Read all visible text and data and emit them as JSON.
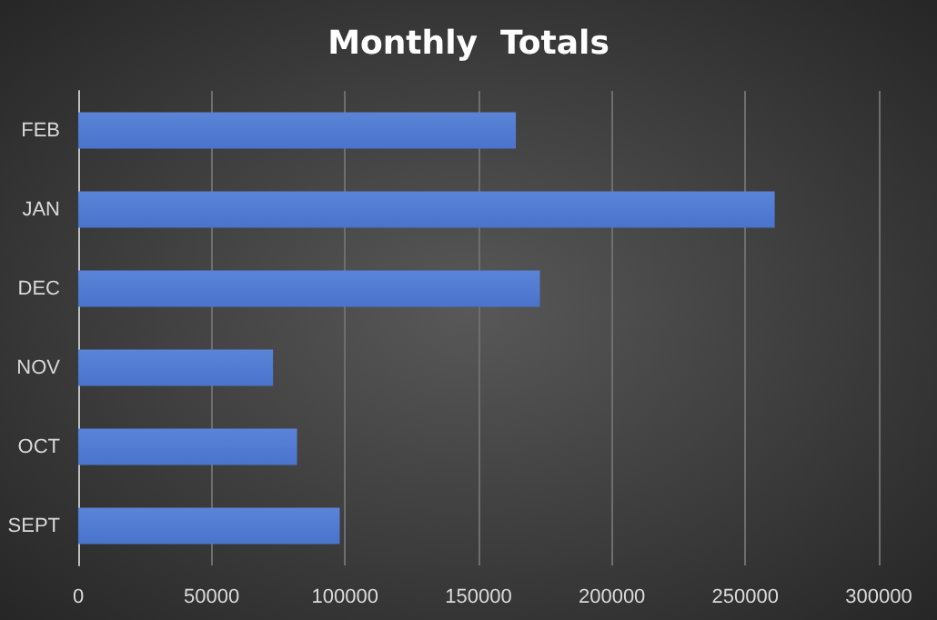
{
  "chart_data": {
    "type": "bar",
    "orientation": "horizontal",
    "title": "Monthly  Totals",
    "categories": [
      "FEB",
      "JAN",
      "DEC",
      "NOV",
      "OCT",
      "SEPT"
    ],
    "values": [
      164000,
      261000,
      173000,
      73000,
      82000,
      98000
    ],
    "color": "#4a74cc",
    "xlim": [
      0,
      300000
    ],
    "xticks": [
      0,
      50000,
      100000,
      150000,
      200000,
      250000,
      300000
    ],
    "grid": "x"
  }
}
